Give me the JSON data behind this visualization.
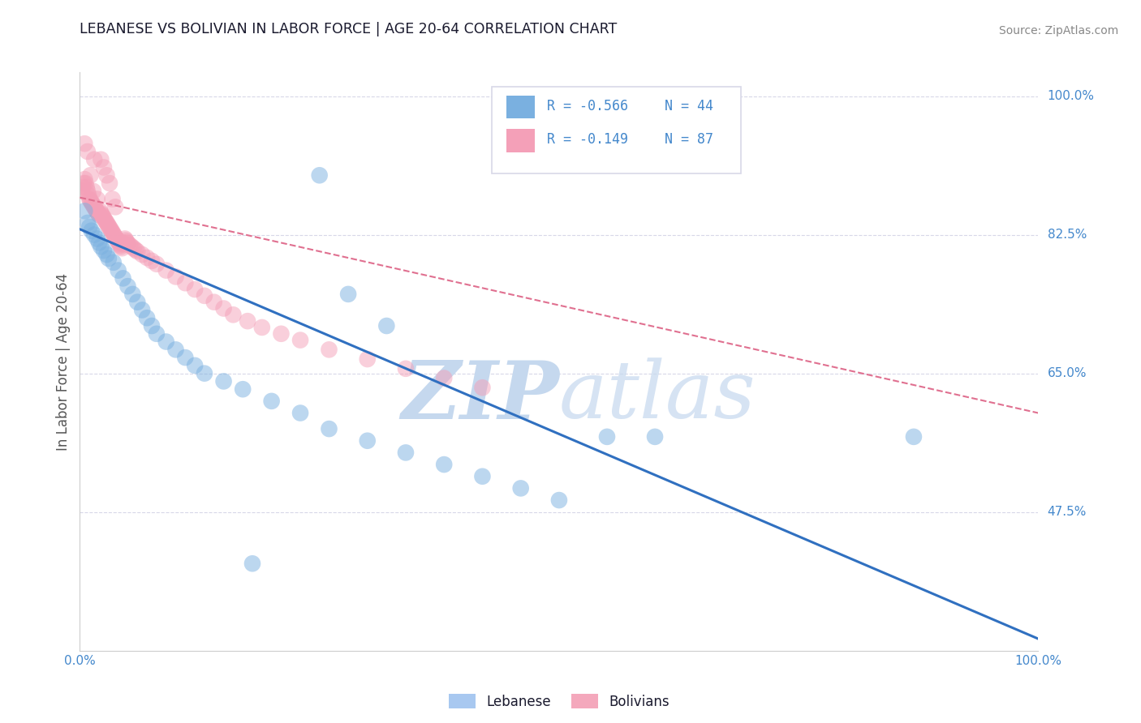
{
  "title": "LEBANESE VS BOLIVIAN IN LABOR FORCE | AGE 20-64 CORRELATION CHART",
  "source": "Source: ZipAtlas.com",
  "ylabel": "In Labor Force | Age 20-64",
  "watermark_zip": "ZIP",
  "watermark_atlas": "atlas",
  "bottom_legend": [
    "Lebanese",
    "Bolivians"
  ],
  "bottom_legend_colors": [
    "#a8c8f0",
    "#f4a8bc"
  ],
  "xlim": [
    0.0,
    1.0
  ],
  "ylim": [
    0.3,
    1.03
  ],
  "yticks": [
    1.0,
    0.825,
    0.65,
    0.475
  ],
  "ytick_labels": [
    "100.0%",
    "82.5%",
    "65.0%",
    "47.5%"
  ],
  "xtick_labels": [
    "0.0%",
    "100.0%"
  ],
  "legend_r1": "R = -0.566",
  "legend_n1": "N = 44",
  "legend_r2": "R = -0.149",
  "legend_n2": "N = 87",
  "blue_color": "#7ab0e0",
  "pink_color": "#f4a0b8",
  "blue_line_color": "#3070c0",
  "pink_line_color": "#e07090",
  "blue_line_start_x": 0.0,
  "blue_line_start_y": 0.832,
  "blue_line_end_x": 1.0,
  "blue_line_end_y": 0.315,
  "pink_line_start_x": 0.0,
  "pink_line_start_y": 0.872,
  "pink_line_end_x": 1.0,
  "pink_line_end_y": 0.6,
  "blue_scatter_x": [
    0.005,
    0.008,
    0.01,
    0.012,
    0.015,
    0.018,
    0.02,
    0.022,
    0.025,
    0.028,
    0.03,
    0.035,
    0.04,
    0.045,
    0.05,
    0.055,
    0.06,
    0.065,
    0.07,
    0.075,
    0.08,
    0.09,
    0.1,
    0.11,
    0.12,
    0.13,
    0.15,
    0.17,
    0.2,
    0.23,
    0.26,
    0.3,
    0.34,
    0.38,
    0.42,
    0.46,
    0.5,
    0.55,
    0.6,
    0.87,
    0.28,
    0.32,
    0.25,
    0.18
  ],
  "blue_scatter_y": [
    0.855,
    0.84,
    0.835,
    0.83,
    0.825,
    0.82,
    0.815,
    0.81,
    0.805,
    0.8,
    0.795,
    0.79,
    0.78,
    0.77,
    0.76,
    0.75,
    0.74,
    0.73,
    0.72,
    0.71,
    0.7,
    0.69,
    0.68,
    0.67,
    0.66,
    0.65,
    0.64,
    0.63,
    0.615,
    0.6,
    0.58,
    0.565,
    0.55,
    0.535,
    0.52,
    0.505,
    0.49,
    0.57,
    0.57,
    0.57,
    0.75,
    0.71,
    0.9,
    0.41
  ],
  "pink_scatter_x": [
    0.002,
    0.003,
    0.004,
    0.005,
    0.006,
    0.007,
    0.008,
    0.009,
    0.01,
    0.011,
    0.012,
    0.013,
    0.014,
    0.015,
    0.016,
    0.017,
    0.018,
    0.019,
    0.02,
    0.021,
    0.022,
    0.023,
    0.024,
    0.025,
    0.026,
    0.027,
    0.028,
    0.029,
    0.03,
    0.031,
    0.032,
    0.033,
    0.034,
    0.035,
    0.036,
    0.037,
    0.038,
    0.039,
    0.04,
    0.041,
    0.042,
    0.043,
    0.044,
    0.045,
    0.046,
    0.047,
    0.048,
    0.049,
    0.05,
    0.052,
    0.054,
    0.056,
    0.058,
    0.06,
    0.065,
    0.07,
    0.075,
    0.08,
    0.09,
    0.1,
    0.11,
    0.12,
    0.13,
    0.14,
    0.15,
    0.16,
    0.175,
    0.19,
    0.21,
    0.23,
    0.26,
    0.3,
    0.34,
    0.38,
    0.42,
    0.015,
    0.018,
    0.022,
    0.025,
    0.028,
    0.031,
    0.034,
    0.037,
    0.005,
    0.008,
    0.011,
    0.014
  ],
  "pink_scatter_y": [
    0.88,
    0.885,
    0.89,
    0.895,
    0.89,
    0.885,
    0.88,
    0.875,
    0.87,
    0.868,
    0.866,
    0.864,
    0.862,
    0.86,
    0.858,
    0.856,
    0.854,
    0.852,
    0.85,
    0.855,
    0.852,
    0.85,
    0.848,
    0.846,
    0.844,
    0.842,
    0.84,
    0.838,
    0.836,
    0.834,
    0.832,
    0.83,
    0.828,
    0.826,
    0.824,
    0.822,
    0.82,
    0.818,
    0.816,
    0.814,
    0.812,
    0.81,
    0.808,
    0.815,
    0.813,
    0.82,
    0.818,
    0.816,
    0.814,
    0.812,
    0.81,
    0.808,
    0.806,
    0.804,
    0.8,
    0.796,
    0.792,
    0.788,
    0.78,
    0.772,
    0.764,
    0.756,
    0.748,
    0.74,
    0.732,
    0.724,
    0.716,
    0.708,
    0.7,
    0.692,
    0.68,
    0.668,
    0.656,
    0.644,
    0.632,
    0.92,
    0.87,
    0.92,
    0.91,
    0.9,
    0.89,
    0.87,
    0.86,
    0.94,
    0.93,
    0.9,
    0.88
  ],
  "title_color": "#1a1a2e",
  "source_color": "#888888",
  "grid_color": "#d8d8e8",
  "axis_color": "#cccccc",
  "ytick_color": "#4488cc",
  "xtick_color": "#4488cc",
  "ylabel_color": "#555555",
  "background_color": "#ffffff",
  "watermark_color": "#c5d8ee"
}
